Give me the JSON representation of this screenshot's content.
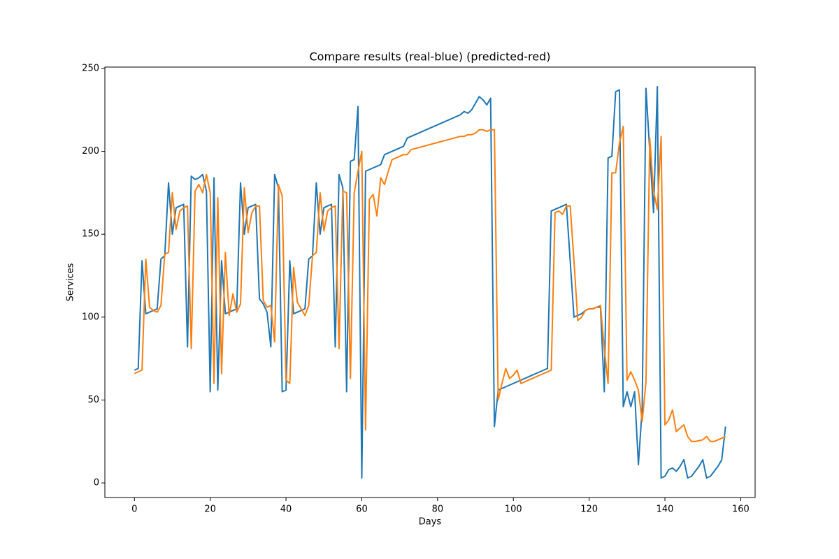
{
  "chart_data": {
    "type": "line",
    "title": "Compare results (real-blue) (predicted-red)",
    "x_label": "Days",
    "y_label": "Services",
    "x": [
      0,
      1,
      2,
      3,
      4,
      5,
      6,
      7,
      8,
      9,
      10,
      11,
      12,
      13,
      14,
      15,
      16,
      17,
      18,
      19,
      20,
      21,
      22,
      23,
      24,
      25,
      26,
      27,
      28,
      29,
      30,
      31,
      32,
      33,
      34,
      35,
      36,
      37,
      38,
      39,
      40,
      41,
      42,
      43,
      44,
      45,
      46,
      47,
      48,
      49,
      50,
      51,
      52,
      53,
      54,
      55,
      56,
      57,
      58,
      59,
      60,
      61,
      62,
      63,
      64,
      65,
      66,
      67,
      68,
      69,
      70,
      71,
      72,
      73,
      86,
      87,
      88,
      89,
      90,
      91,
      92,
      93,
      94,
      95,
      96,
      97,
      98,
      99,
      100,
      101,
      102,
      109,
      110,
      111,
      112,
      113,
      114,
      115,
      116,
      117,
      118,
      119,
      120,
      121,
      122,
      123,
      124,
      125,
      126,
      127,
      128,
      129,
      130,
      131,
      132,
      133,
      134,
      135,
      136,
      137,
      138,
      139,
      140,
      141,
      142,
      143,
      144,
      145,
      146,
      147,
      148,
      149,
      150,
      151,
      152,
      153,
      154,
      155,
      156
    ],
    "series": [
      {
        "name": "real",
        "color": "#1f77b4",
        "values": [
          68,
          69,
          134,
          102,
          103,
          104,
          105,
          135,
          137,
          181,
          150,
          166,
          167,
          168,
          82,
          185,
          183,
          184,
          186,
          176,
          55,
          184,
          56,
          134,
          102,
          103,
          104,
          105,
          181,
          150,
          166,
          167,
          168,
          111,
          108,
          103,
          82,
          186,
          178,
          55,
          56,
          134,
          102,
          103,
          104,
          105,
          135,
          137,
          181,
          150,
          166,
          167,
          168,
          82,
          186,
          178,
          55,
          194,
          195,
          227,
          3,
          188,
          189,
          190,
          191,
          192,
          198,
          199,
          200,
          201,
          202,
          203,
          208,
          209,
          222,
          224,
          223,
          225,
          229,
          233,
          231,
          228,
          232,
          34,
          56,
          57,
          58,
          59,
          60,
          61,
          62,
          69,
          164,
          165,
          166,
          167,
          168,
          134,
          100,
          101,
          102,
          104,
          105,
          105,
          106,
          106,
          55,
          196,
          197,
          236,
          237,
          46,
          55,
          46,
          55,
          11,
          45,
          238,
          200,
          163,
          239,
          3,
          4,
          8,
          9,
          7,
          10,
          14,
          3,
          4,
          7,
          10,
          14,
          3,
          4,
          7,
          10,
          14,
          34
        ]
      },
      {
        "name": "predicted",
        "color": "#ff7f0e",
        "values": [
          66,
          67,
          68,
          135,
          106,
          104,
          103,
          107,
          138,
          139,
          175,
          153,
          164,
          166,
          167,
          81,
          176,
          180,
          175,
          186,
          175,
          60,
          172,
          66,
          139,
          101,
          114,
          103,
          108,
          178,
          151,
          163,
          167,
          167,
          110,
          106,
          107,
          85,
          180,
          173,
          62,
          60,
          130,
          109,
          105,
          101,
          107,
          137,
          139,
          175,
          152,
          164,
          166,
          167,
          81,
          176,
          175,
          63,
          175,
          188,
          200,
          32,
          171,
          174,
          161,
          184,
          180,
          188,
          195,
          196,
          197,
          198,
          198,
          201,
          209,
          209,
          210,
          210,
          211,
          213,
          213,
          212,
          213,
          213,
          50,
          60,
          69,
          63,
          65,
          68,
          60,
          67,
          68,
          163,
          164,
          162,
          167,
          167,
          134,
          98,
          100,
          104,
          105,
          105,
          106,
          107,
          81,
          60,
          187,
          187,
          205,
          215,
          62,
          67,
          62,
          56,
          37,
          61,
          208,
          176,
          165,
          209,
          35,
          38,
          44,
          31,
          33,
          35,
          28,
          25,
          25,
          25.5,
          26,
          28,
          25,
          25,
          26,
          27,
          28
        ]
      }
    ],
    "xlim": [
      -7.8,
      163.8
    ],
    "ylim": [
      -8.8,
      250.8
    ],
    "xticks": [
      0,
      20,
      40,
      60,
      80,
      100,
      120,
      140,
      160
    ],
    "yticks": [
      0,
      50,
      100,
      150,
      200,
      250
    ],
    "grid": false
  }
}
